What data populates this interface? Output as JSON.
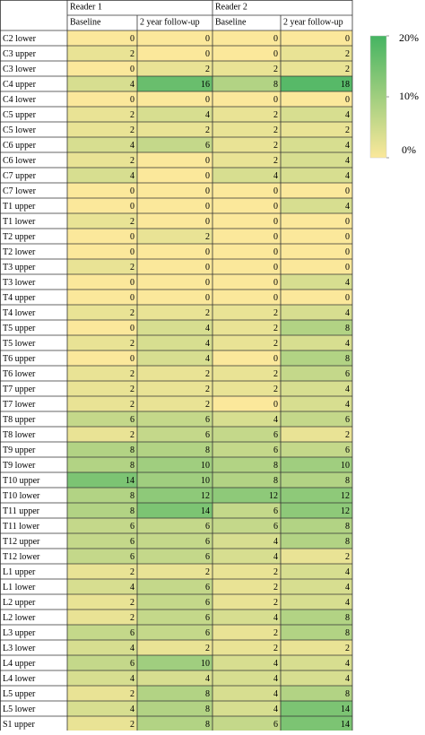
{
  "table": {
    "groups": [
      "Reader 1",
      "Reader 2"
    ],
    "columns": [
      "Baseline",
      "2 year follow-up",
      "Baseline",
      "2 year follow-up"
    ],
    "rows": [
      {
        "label": "C2 lower",
        "values": [
          0,
          0,
          0,
          0
        ]
      },
      {
        "label": "C3 upper",
        "values": [
          2,
          0,
          0,
          2
        ]
      },
      {
        "label": "C3 lower",
        "values": [
          0,
          2,
          2,
          2
        ]
      },
      {
        "label": "C4 upper",
        "values": [
          4,
          16,
          8,
          18
        ]
      },
      {
        "label": "C4 lower",
        "values": [
          0,
          0,
          0,
          0
        ]
      },
      {
        "label": "C5 upper",
        "values": [
          2,
          4,
          2,
          4
        ]
      },
      {
        "label": "C5 lower",
        "values": [
          2,
          2,
          2,
          2
        ]
      },
      {
        "label": "C6 upper",
        "values": [
          4,
          6,
          2,
          4
        ]
      },
      {
        "label": "C6 lower",
        "values": [
          2,
          0,
          2,
          4
        ]
      },
      {
        "label": "C7 upper",
        "values": [
          4,
          0,
          4,
          4
        ]
      },
      {
        "label": "C7 lower",
        "values": [
          0,
          0,
          0,
          0
        ]
      },
      {
        "label": "T1 upper",
        "values": [
          0,
          0,
          0,
          4
        ]
      },
      {
        "label": "T1 lower",
        "values": [
          2,
          0,
          0,
          0
        ]
      },
      {
        "label": "T2 upper",
        "values": [
          0,
          2,
          0,
          0
        ]
      },
      {
        "label": "T2 lower",
        "values": [
          0,
          0,
          0,
          0
        ]
      },
      {
        "label": "T3 upper",
        "values": [
          2,
          0,
          0,
          0
        ]
      },
      {
        "label": "T3 lower",
        "values": [
          0,
          0,
          0,
          4
        ]
      },
      {
        "label": "T4 upper",
        "values": [
          0,
          0,
          0,
          0
        ]
      },
      {
        "label": "T4 lower",
        "values": [
          2,
          2,
          2,
          4
        ]
      },
      {
        "label": "T5 upper",
        "values": [
          0,
          4,
          2,
          8
        ]
      },
      {
        "label": "T5 lower",
        "values": [
          2,
          4,
          2,
          4
        ]
      },
      {
        "label": "T6 upper",
        "values": [
          0,
          4,
          0,
          8
        ]
      },
      {
        "label": "T6 lower",
        "values": [
          2,
          2,
          2,
          6
        ]
      },
      {
        "label": "T7 upper",
        "values": [
          2,
          2,
          2,
          4
        ]
      },
      {
        "label": "T7 lower",
        "values": [
          2,
          2,
          0,
          4
        ]
      },
      {
        "label": "T8 upper",
        "values": [
          6,
          6,
          4,
          6
        ]
      },
      {
        "label": "T8 lower",
        "values": [
          2,
          6,
          6,
          2
        ]
      },
      {
        "label": "T9 upper",
        "values": [
          8,
          8,
          6,
          6
        ]
      },
      {
        "label": "T9 lower",
        "values": [
          8,
          10,
          8,
          10
        ]
      },
      {
        "label": "T10 upper",
        "values": [
          14,
          10,
          8,
          8
        ]
      },
      {
        "label": "T10 lower",
        "values": [
          8,
          12,
          12,
          12
        ]
      },
      {
        "label": "T11 upper",
        "values": [
          8,
          14,
          6,
          12
        ]
      },
      {
        "label": "T11 lower",
        "values": [
          6,
          6,
          6,
          8
        ]
      },
      {
        "label": "T12 upper",
        "values": [
          6,
          6,
          4,
          8
        ]
      },
      {
        "label": "T12 lower",
        "values": [
          6,
          6,
          4,
          2
        ]
      },
      {
        "label": "L1 upper",
        "values": [
          2,
          2,
          2,
          4
        ]
      },
      {
        "label": "L1 lower",
        "values": [
          4,
          6,
          2,
          4
        ]
      },
      {
        "label": "L2 upper",
        "values": [
          2,
          6,
          2,
          4
        ]
      },
      {
        "label": "L2 lower",
        "values": [
          2,
          6,
          4,
          8
        ]
      },
      {
        "label": "L3 upper",
        "values": [
          6,
          6,
          2,
          8
        ]
      },
      {
        "label": "L3 lower",
        "values": [
          4,
          2,
          2,
          2
        ]
      },
      {
        "label": "L4 upper",
        "values": [
          6,
          10,
          4,
          4
        ]
      },
      {
        "label": "L4 lower",
        "values": [
          4,
          4,
          4,
          4
        ]
      },
      {
        "label": "L5 upper",
        "values": [
          2,
          8,
          4,
          8
        ]
      },
      {
        "label": "L5 lower",
        "values": [
          4,
          8,
          4,
          14
        ]
      },
      {
        "label": "S1 upper",
        "values": [
          2,
          8,
          6,
          14
        ]
      }
    ]
  },
  "color_scale": {
    "colors": [
      "#fbe89b",
      "#45b462"
    ],
    "lim": [
      0,
      20
    ],
    "ticks": [
      {
        "value": 20,
        "label": "20%"
      },
      {
        "value": 10,
        "label": "10%"
      },
      {
        "value": 0,
        "label": "0%"
      }
    ]
  }
}
